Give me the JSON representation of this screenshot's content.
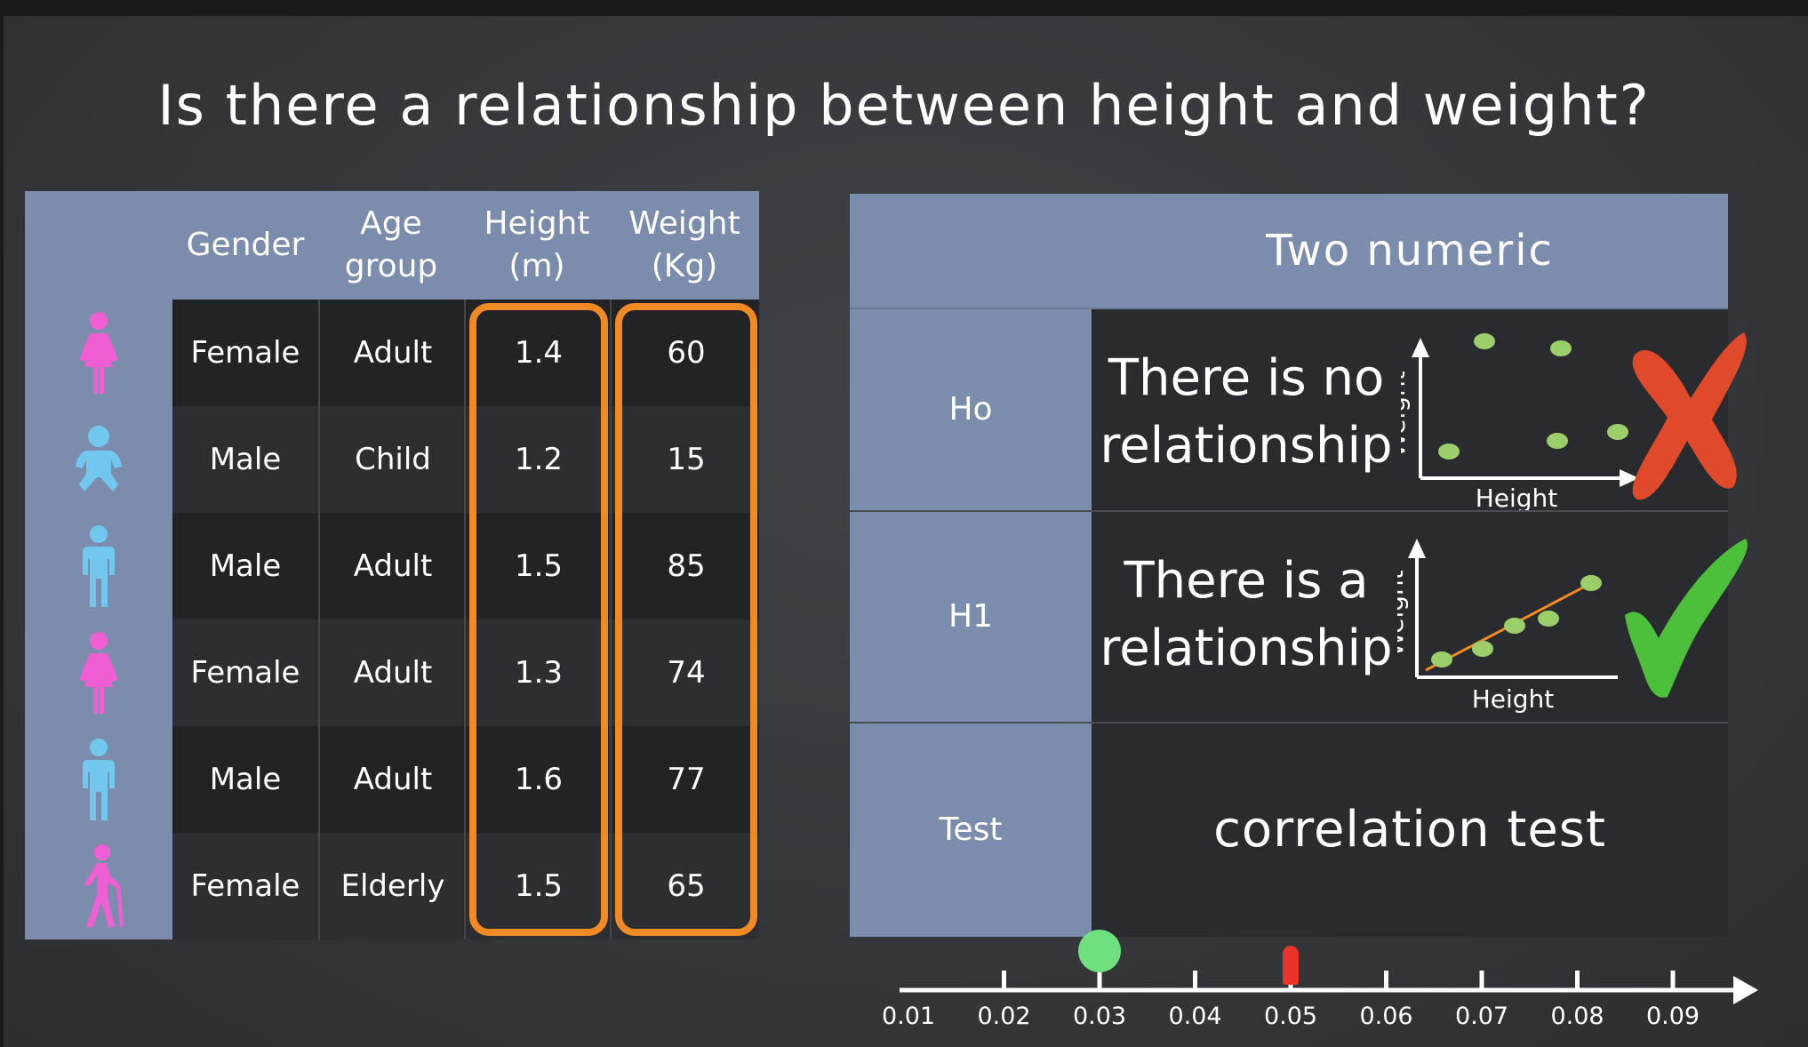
{
  "title": "Is there a relationship between height and weight?",
  "data_table": {
    "headers": [
      "Gender",
      "Age\ngroup",
      "Height\n(m)",
      "Weight\n(Kg)"
    ],
    "rows": [
      {
        "icon": "woman-icon",
        "gender": "Female",
        "age_group": "Adult",
        "height": "1.4",
        "weight": "60"
      },
      {
        "icon": "baby-icon",
        "gender": "Male",
        "age_group": "Child",
        "height": "1.2",
        "weight": "15"
      },
      {
        "icon": "man-icon",
        "gender": "Male",
        "age_group": "Adult",
        "height": "1.5",
        "weight": "85"
      },
      {
        "icon": "woman-icon",
        "gender": "Female",
        "age_group": "Adult",
        "height": "1.3",
        "weight": "74"
      },
      {
        "icon": "man-icon",
        "gender": "Male",
        "age_group": "Adult",
        "height": "1.6",
        "weight": "77"
      },
      {
        "icon": "elderly-person-icon",
        "gender": "Female",
        "age_group": "Elderly",
        "height": "1.5",
        "weight": "65"
      }
    ],
    "highlight_color": "#f08a24",
    "female_icon_color": "#ef5fd3",
    "male_icon_color": "#72c7ef"
  },
  "hypothesis": {
    "header": "Two numeric",
    "h0_label": "Ho",
    "h0_text": "There is no\nrelationship",
    "h1_label": "H1",
    "h1_text": "There is a\nrelationship",
    "test_label": "Test",
    "test_text": "correlation test",
    "mini_chart_xlabel": "Height",
    "mini_chart_ylabel": "Weight",
    "reject_icon": "red-cross-icon",
    "accept_icon": "green-check-icon"
  },
  "p_axis": {
    "ticks": [
      "0.01",
      "0.02",
      "0.03",
      "0.04",
      "0.05",
      "0.06",
      "0.07",
      "0.08",
      "0.09"
    ],
    "p_value_marker": 0.03,
    "significance_marker": 0.05,
    "p_value_color": "#6fe07f",
    "significance_color": "#e8322a"
  },
  "colors": {
    "panel_blue": "#7c8cad",
    "point_green": "#9ccf6a",
    "trend_orange": "#f08a24",
    "cross_red": "#e04a2a",
    "check_green": "#4cc03a"
  }
}
